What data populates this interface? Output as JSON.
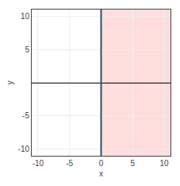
{
  "chart_data": {
    "type": "region",
    "xlabel": "x",
    "ylabel": "y",
    "xlim": [
      -11,
      11
    ],
    "ylim": [
      -11,
      11
    ],
    "xticks": [
      -10,
      -5,
      0,
      5,
      10
    ],
    "yticks": [
      -10,
      -5,
      5,
      10
    ],
    "grid": true,
    "series": [
      {
        "type": "vspan",
        "x": [
          0,
          11
        ],
        "color": "#ffb3b3"
      },
      {
        "type": "vline",
        "x": [
          0
        ],
        "color": "#2f4f6f"
      }
    ]
  }
}
